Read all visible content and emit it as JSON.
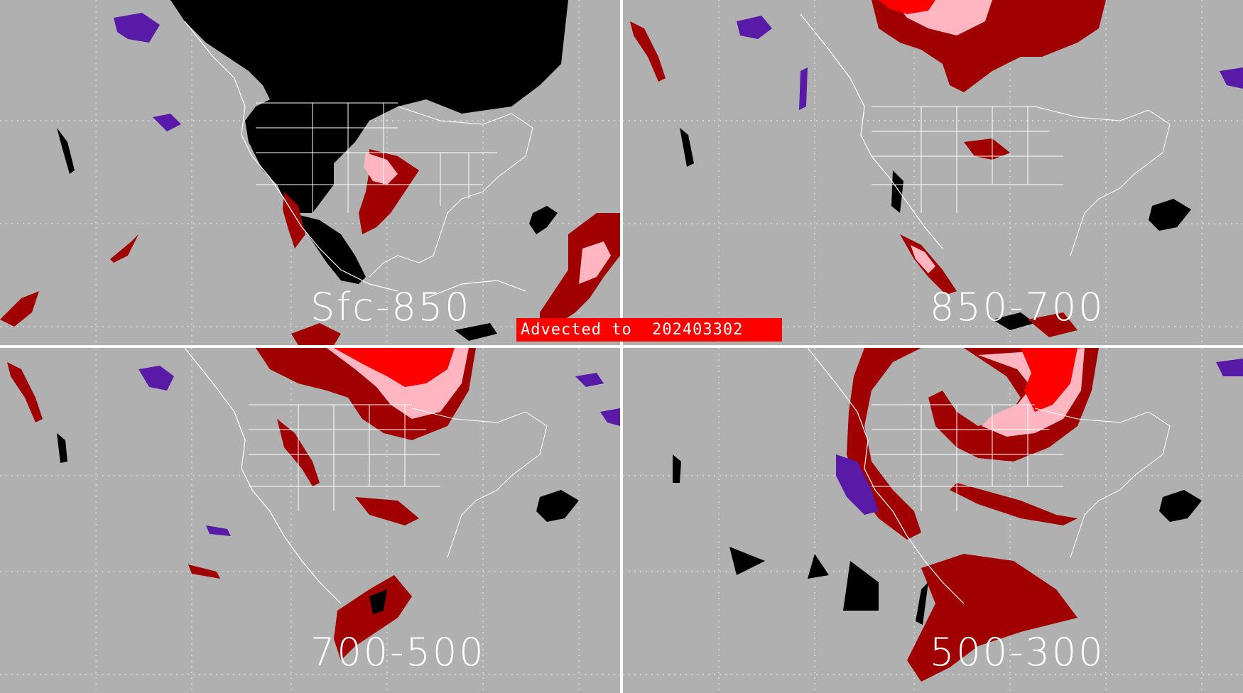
{
  "figure": {
    "banner_text": "Advected to  202403302",
    "panels": [
      {
        "id": "sfc-850",
        "label": "Sfc-850"
      },
      {
        "id": "850-700",
        "label": "850-700"
      },
      {
        "id": "700-500",
        "label": "700-500"
      },
      {
        "id": "500-300",
        "label": "500-300"
      }
    ]
  },
  "colors": {
    "background": "#b0b0b0",
    "grid_dots": "#ffffff",
    "borders": "#ffffff",
    "category_black": "#000000",
    "category_dark_red": "#a00000",
    "category_red": "#ff0000",
    "category_pink": "#ffb6c1",
    "category_purple": "#5a1aa8",
    "banner": "#ff0000"
  }
}
